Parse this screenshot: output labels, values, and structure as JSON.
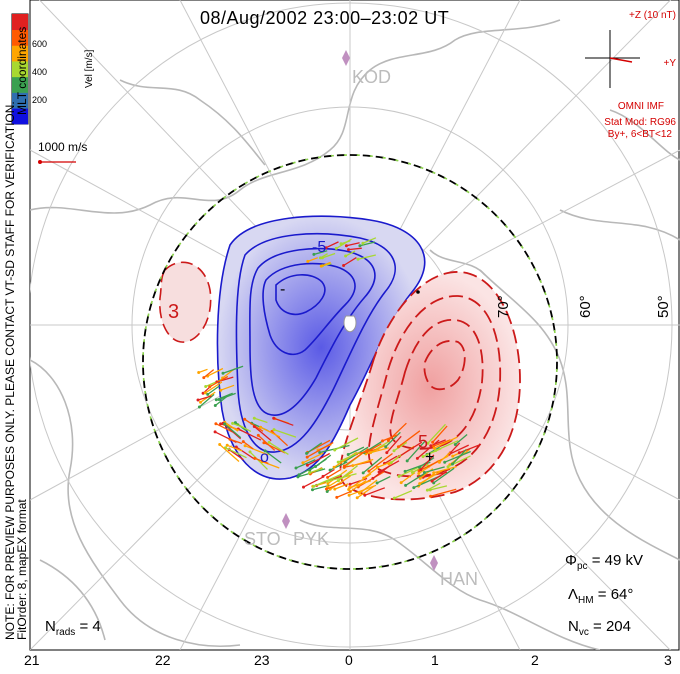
{
  "title": "08/Aug/2002 23:00–23:02 UT",
  "notes": {
    "preview": "NOTE: FOR PREVIEW PURPOSES ONLY. PLEASE CONTACT VT-SD STAFF FOR VERIFICATION.",
    "fit": "FitOrder: 8, mapEX format",
    "coords": "MLT coordinates"
  },
  "colorbar": {
    "label": "Vel [m/s]",
    "ticks": [
      "200",
      "400",
      "600"
    ],
    "colors": [
      "#1010e0",
      "#2f6fb0",
      "#3aa050",
      "#a8d830",
      "#ffa500",
      "#ff5a00",
      "#e02020"
    ]
  },
  "scale_vector": {
    "label": "1000 m/s",
    "color": "#d40000"
  },
  "imf": {
    "bz_label": "+Z (10 nT)",
    "by_label": "+Y",
    "source": "OMNI IMF",
    "model": "Stat Mod: RG96",
    "condition": "By+, 6<BT<12"
  },
  "stations": [
    "KOD",
    "STO",
    "PYK",
    "HAN"
  ],
  "lat_labels": [
    "70°",
    "60°",
    "50°"
  ],
  "contour_labels": [
    "3",
    "5",
    "-5",
    "-",
    "o",
    "+"
  ],
  "stats": {
    "phi_pc": {
      "symbol": "Φ",
      "sub": "pc",
      "value": "= 49 kV"
    },
    "lambda_hm": {
      "symbol": "Λ",
      "sub": "HM",
      "value": "= 64°"
    },
    "n_vc": {
      "symbol": "N",
      "sub": "vc",
      "value": "= 204"
    },
    "n_rads": {
      "symbol": "N",
      "sub": "rads",
      "value": "= 4"
    }
  },
  "chart_data": {
    "type": "map",
    "x_axis": {
      "label": "MLT",
      "ticks": [
        "21",
        "22",
        "23",
        "0",
        "1",
        "2",
        "3"
      ]
    },
    "latitude_circles": [
      70,
      60,
      50
    ],
    "heppner_maynard_boundary_lat": 64,
    "cross_polar_cap_potential_kV": 49,
    "num_vectors": 204,
    "num_radars": 4,
    "potential_cells": [
      {
        "sign": "negative",
        "color": "#1a1acc"
      },
      {
        "sign": "positive",
        "color": "#cc1a1a"
      }
    ]
  }
}
